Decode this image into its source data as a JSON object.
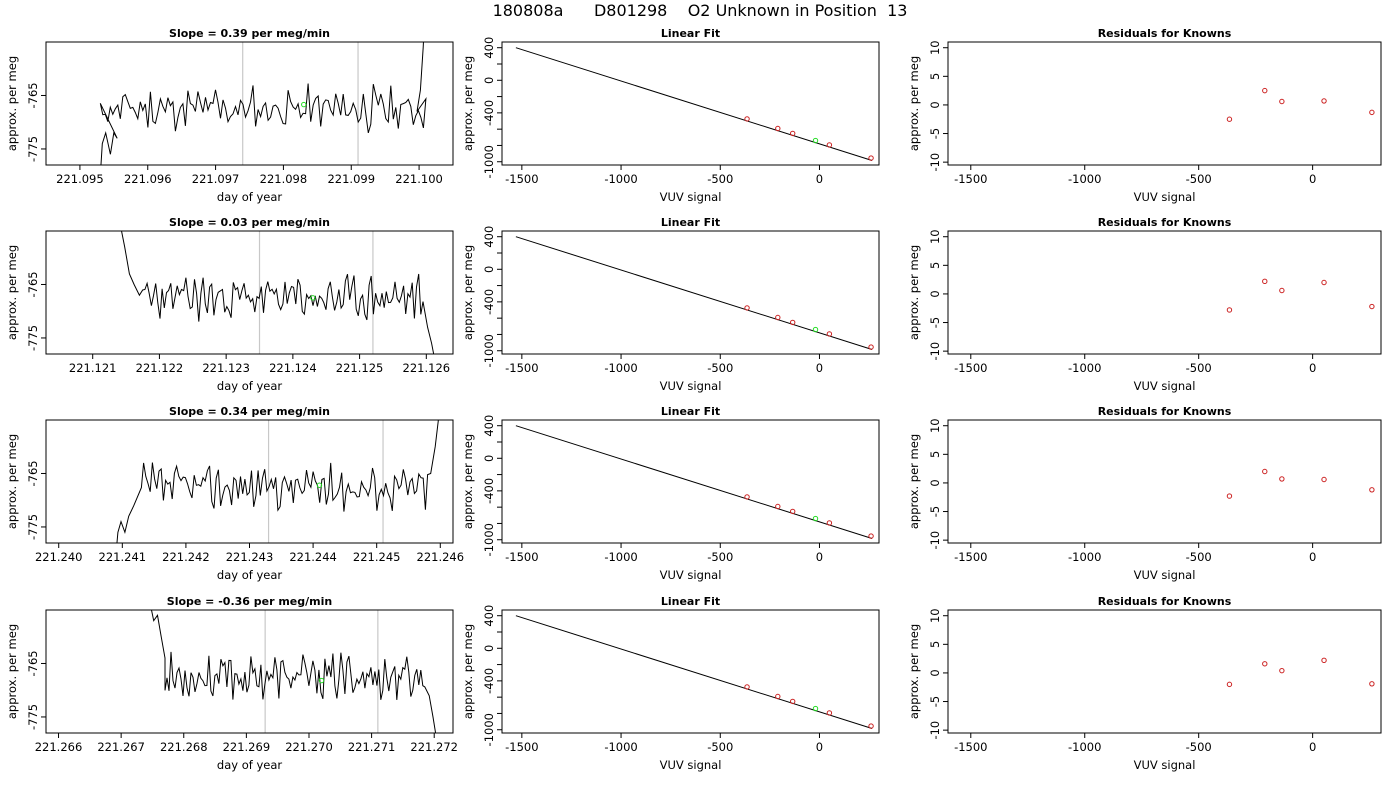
{
  "figure": {
    "title": "180808a      D801298    O2 Unknown in Position  13"
  },
  "chart_data": [
    {
      "row": 1,
      "panels": [
        {
          "type": "line",
          "title": "Slope =  0.39  per meg/min",
          "xlabel": "day of year",
          "ylabel": "approx. per meg",
          "xlim": [
            221.0945,
            221.1005
          ],
          "ylim": [
            -778,
            -755
          ],
          "x_ticks": [
            221.095,
            221.096,
            221.097,
            221.098,
            221.099,
            221.1
          ],
          "x_tick_labels": [
            "221.095",
            "221.096",
            "221.097",
            "221.098",
            "221.099",
            "221.100"
          ],
          "y_ticks": [
            -765,
            -775
          ],
          "y_tick_labels": [
            "-765",
            "-775"
          ],
          "vlines": [
            221.0974,
            221.0991
          ],
          "highlight_point": {
            "x": 221.0983,
            "y": -766.7
          },
          "trace_start": 221.0953,
          "trace_end": 221.1001,
          "trace_pre": [
            [
              221.0953,
              -780
            ],
            [
              221.09533,
              -774
            ],
            [
              221.09538,
              -772
            ],
            [
              221.09545,
              -776
            ],
            [
              221.0955,
              -772
            ],
            [
              221.09555,
              -773
            ]
          ],
          "trace_post": [
            [
              221.09997,
              -768
            ],
            [
              221.10002,
              -764
            ],
            [
              221.10006,
              -756
            ],
            [
              221.10009,
              -748
            ]
          ],
          "seed": 11
        },
        {
          "type": "scatter",
          "title": "Linear Fit",
          "xlabel": "VUV signal",
          "ylabel": "approx. per meg",
          "xlim": [
            -1600,
            300
          ],
          "ylim": [
            -1040,
            470
          ],
          "x_ticks": [
            -1500,
            -1000,
            -500,
            0
          ],
          "x_tick_labels": [
            "-1500",
            "-1000",
            "-500",
            "0"
          ],
          "y_ticks": [
            400,
            0,
            -400,
            -1000
          ],
          "y_tick_labels": [
            "400",
            "0",
            "-400",
            "-1000"
          ],
          "y_minor_ticks": [
            200,
            -200,
            -600,
            -800
          ],
          "fit_line": {
            "x": [
              -1530,
              265
            ],
            "y": [
              400,
              -985
            ]
          },
          "knowns": {
            "x": [
              -365,
              -210,
              -135,
              50,
              260
            ],
            "y": [
              -474,
              -592,
              -652,
              -794,
              -955
            ]
          },
          "unknown": {
            "x": -20,
            "y": -740
          }
        },
        {
          "type": "scatter",
          "title": "Residuals for Knowns",
          "xlabel": "VUV signal",
          "ylabel": "approx. per meg",
          "xlim": [
            -1600,
            300
          ],
          "ylim": [
            -10.5,
            11
          ],
          "x_ticks": [
            -1500,
            -1000,
            -500,
            0
          ],
          "x_tick_labels": [
            "-1500",
            "-1000",
            "-500",
            "0"
          ],
          "y_ticks": [
            10,
            5,
            0,
            -5,
            -10
          ],
          "y_tick_labels": [
            "10",
            "5",
            "0",
            "-5",
            "-10"
          ],
          "residuals": {
            "x": [
              -365,
              -210,
              -135,
              50,
              260
            ],
            "y": [
              -2.5,
              2.5,
              0.6,
              0.7,
              -1.3
            ]
          }
        }
      ]
    },
    {
      "row": 2,
      "panels": [
        {
          "type": "line",
          "title": "Slope =  0.03  per meg/min",
          "xlabel": "day of year",
          "ylabel": "approx. per meg",
          "xlim": [
            221.1203,
            221.1264
          ],
          "ylim": [
            -778,
            -755
          ],
          "x_ticks": [
            221.121,
            221.122,
            221.123,
            221.124,
            221.125,
            221.126
          ],
          "x_tick_labels": [
            "221.121",
            "221.122",
            "221.123",
            "221.124",
            "221.125",
            "221.126"
          ],
          "y_ticks": [
            -765,
            -775
          ],
          "y_tick_labels": [
            "-765",
            "-775"
          ],
          "vlines": [
            221.1235,
            221.1252
          ],
          "highlight_point": {
            "x": 221.1243,
            "y": -767.5
          },
          "trace_start": 221.12175,
          "trace_end": 221.12595,
          "trace_pre": [
            [
              221.1214,
              -753
            ],
            [
              221.12148,
              -758
            ],
            [
              221.12155,
              -763
            ],
            [
              221.12162,
              -765
            ],
            [
              221.1217,
              -767
            ]
          ],
          "trace_post": [
            [
              221.12602,
              -773
            ],
            [
              221.12608,
              -776
            ],
            [
              221.12614,
              -780
            ]
          ],
          "seed": 23
        },
        {
          "type": "scatter",
          "title": "Linear Fit",
          "xlabel": "VUV signal",
          "ylabel": "approx. per meg",
          "xlim": [
            -1600,
            300
          ],
          "ylim": [
            -1040,
            470
          ],
          "x_ticks": [
            -1500,
            -1000,
            -500,
            0
          ],
          "x_tick_labels": [
            "-1500",
            "-1000",
            "-500",
            "0"
          ],
          "y_ticks": [
            400,
            0,
            -400,
            -1000
          ],
          "y_tick_labels": [
            "400",
            "0",
            "-400",
            "-1000"
          ],
          "y_minor_ticks": [
            200,
            -200,
            -600,
            -800
          ],
          "fit_line": {
            "x": [
              -1530,
              265
            ],
            "y": [
              400,
              -985
            ]
          },
          "knowns": {
            "x": [
              -365,
              -210,
              -135,
              50,
              260
            ],
            "y": [
              -474,
              -592,
              -652,
              -794,
              -955
            ]
          },
          "unknown": {
            "x": -20,
            "y": -740
          }
        },
        {
          "type": "scatter",
          "title": "Residuals for Knowns",
          "xlabel": "VUV signal",
          "ylabel": "approx. per meg",
          "xlim": [
            -1600,
            300
          ],
          "ylim": [
            -10.5,
            11
          ],
          "x_ticks": [
            -1500,
            -1000,
            -500,
            0
          ],
          "x_tick_labels": [
            "-1500",
            "-1000",
            "-500",
            "0"
          ],
          "y_ticks": [
            10,
            5,
            0,
            -5,
            -10
          ],
          "y_tick_labels": [
            "10",
            "5",
            "0",
            "-5",
            "-10"
          ],
          "residuals": {
            "x": [
              -365,
              -210,
              -135,
              50,
              260
            ],
            "y": [
              -2.8,
              2.2,
              0.6,
              2.0,
              -2.2
            ]
          }
        }
      ]
    },
    {
      "row": 3,
      "panels": [
        {
          "type": "line",
          "title": "Slope =  0.34  per meg/min",
          "xlabel": "day of year",
          "ylabel": "approx. per meg",
          "xlim": [
            221.2398,
            221.2462
          ],
          "ylim": [
            -778,
            -755
          ],
          "x_ticks": [
            221.24,
            221.241,
            221.242,
            221.243,
            221.244,
            221.245,
            221.246
          ],
          "x_tick_labels": [
            "221.240",
            "221.241",
            "221.242",
            "221.243",
            "221.244",
            "221.245",
            "221.246"
          ],
          "y_ticks": [
            -765,
            -775
          ],
          "y_tick_labels": [
            "-765",
            "-775"
          ],
          "vlines": [
            221.2433,
            221.2451
          ],
          "highlight_point": {
            "x": 221.2441,
            "y": -767.2
          },
          "trace_start": 221.2413,
          "trace_end": 221.2458,
          "trace_pre": [
            [
              221.2409,
              -780
            ],
            [
              221.24093,
              -776
            ],
            [
              221.24098,
              -774
            ],
            [
              221.24104,
              -776
            ],
            [
              221.2411,
              -773
            ],
            [
              221.24118,
              -771
            ]
          ],
          "trace_post": [
            [
              221.24585,
              -765
            ],
            [
              221.24592,
              -760
            ],
            [
              221.24598,
              -754
            ]
          ],
          "seed": 37
        },
        {
          "type": "scatter",
          "title": "Linear Fit",
          "xlabel": "VUV signal",
          "ylabel": "approx. per meg",
          "xlim": [
            -1600,
            300
          ],
          "ylim": [
            -1040,
            470
          ],
          "x_ticks": [
            -1500,
            -1000,
            -500,
            0
          ],
          "x_tick_labels": [
            "-1500",
            "-1000",
            "-500",
            "0"
          ],
          "y_ticks": [
            400,
            0,
            -400,
            -1000
          ],
          "y_tick_labels": [
            "400",
            "0",
            "-400",
            "-1000"
          ],
          "y_minor_ticks": [
            200,
            -200,
            -600,
            -800
          ],
          "fit_line": {
            "x": [
              -1530,
              265
            ],
            "y": [
              400,
              -985
            ]
          },
          "knowns": {
            "x": [
              -365,
              -210,
              -135,
              50,
              260
            ],
            "y": [
              -474,
              -592,
              -652,
              -794,
              -955
            ]
          },
          "unknown": {
            "x": -20,
            "y": -740
          }
        },
        {
          "type": "scatter",
          "title": "Residuals for Knowns",
          "xlabel": "VUV signal",
          "ylabel": "approx. per meg",
          "xlim": [
            -1600,
            300
          ],
          "ylim": [
            -10.5,
            11
          ],
          "x_ticks": [
            -1500,
            -1000,
            -500,
            0
          ],
          "x_tick_labels": [
            "-1500",
            "-1000",
            "-500",
            "0"
          ],
          "y_ticks": [
            10,
            5,
            0,
            -5,
            -10
          ],
          "y_tick_labels": [
            "10",
            "5",
            "0",
            "-5",
            "-10"
          ],
          "residuals": {
            "x": [
              -365,
              -210,
              -135,
              50,
              260
            ],
            "y": [
              -2.3,
              2.0,
              0.7,
              0.6,
              -1.2
            ]
          }
        }
      ]
    },
    {
      "row": 4,
      "panels": [
        {
          "type": "line",
          "title": "Slope =  -0.36  per meg/min",
          "xlabel": "day of year",
          "ylabel": "approx. per meg",
          "xlim": [
            221.2658,
            221.2723
          ],
          "ylim": [
            -778,
            -755
          ],
          "x_ticks": [
            221.266,
            221.267,
            221.268,
            221.269,
            221.27,
            221.271,
            221.272
          ],
          "x_tick_labels": [
            "221.266",
            "221.267",
            "221.268",
            "221.269",
            "221.270",
            "221.271",
            "221.272"
          ],
          "y_ticks": [
            -765,
            -775
          ],
          "y_tick_labels": [
            "-765",
            "-775"
          ],
          "vlines": [
            221.2693,
            221.2711
          ],
          "highlight_point": {
            "x": 221.2702,
            "y": -768.2
          },
          "trace_start": 221.2677,
          "trace_end": 221.27185,
          "trace_pre": [
            [
              221.26745,
              -753
            ],
            [
              221.26752,
              -757
            ],
            [
              221.26758,
              -756
            ],
            [
              221.26764,
              -760
            ],
            [
              221.2677,
              -764
            ]
          ],
          "trace_post": [
            [
              221.27192,
              -771
            ],
            [
              221.27198,
              -775
            ],
            [
              221.27205,
              -780
            ]
          ],
          "seed": 53
        },
        {
          "type": "scatter",
          "title": "Linear Fit",
          "xlabel": "VUV signal",
          "ylabel": "approx. per meg",
          "xlim": [
            -1600,
            300
          ],
          "ylim": [
            -1040,
            470
          ],
          "x_ticks": [
            -1500,
            -1000,
            -500,
            0
          ],
          "x_tick_labels": [
            "-1500",
            "-1000",
            "-500",
            "0"
          ],
          "y_ticks": [
            400,
            0,
            -400,
            -1000
          ],
          "y_tick_labels": [
            "400",
            "0",
            "-400",
            "-1000"
          ],
          "y_minor_ticks": [
            200,
            -200,
            -600,
            -800
          ],
          "fit_line": {
            "x": [
              -1530,
              265
            ],
            "y": [
              400,
              -985
            ]
          },
          "knowns": {
            "x": [
              -365,
              -210,
              -135,
              50,
              260
            ],
            "y": [
              -474,
              -592,
              -652,
              -794,
              -955
            ]
          },
          "unknown": {
            "x": -20,
            "y": -740
          }
        },
        {
          "type": "scatter",
          "title": "Residuals for Knowns",
          "xlabel": "VUV signal",
          "ylabel": "approx. per meg",
          "xlim": [
            -1600,
            300
          ],
          "ylim": [
            -10.5,
            11
          ],
          "x_ticks": [
            -1500,
            -1000,
            -500,
            0
          ],
          "x_tick_labels": [
            "-1500",
            "-1000",
            "-500",
            "0"
          ],
          "y_ticks": [
            10,
            5,
            0,
            -5,
            -10
          ],
          "y_tick_labels": [
            "10",
            "5",
            "0",
            "-5",
            "-10"
          ],
          "residuals": {
            "x": [
              -365,
              -210,
              -135,
              50,
              260
            ],
            "y": [
              -2.0,
              1.6,
              0.4,
              2.2,
              -1.9
            ]
          }
        }
      ]
    }
  ],
  "colors": {
    "axis": "#000000",
    "trace": "#000000",
    "vline": "#c8c8c8",
    "unknown_point": "#22dd22",
    "known_point": "#cc2222"
  }
}
